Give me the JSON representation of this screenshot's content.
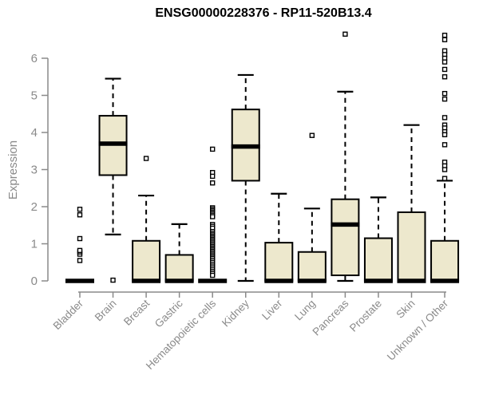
{
  "chart_data": {
    "type": "boxplot",
    "title": "ENSG00000228376 - RP11-520B13.4",
    "ylabel": "Expression",
    "xlabel": "",
    "ylim": [
      0,
      6
    ],
    "y_ticks": [
      0,
      1,
      2,
      3,
      4,
      5,
      6
    ],
    "grid": false,
    "legend": "none",
    "box_fill": "#EDE8CD",
    "box_stroke": "#000000",
    "axis_color": "#8A8A8A",
    "categories": [
      "Bladder",
      "Brain",
      "Breast",
      "Gastric",
      "Hematopoietic cells",
      "Kidney",
      "Liver",
      "Lung",
      "Pancreas",
      "Prostate",
      "Skin",
      "Unknown / Other"
    ],
    "series": [
      {
        "category": "Bladder",
        "whisker_low": 0,
        "q1": 0,
        "median": 0,
        "q3": 0,
        "whisker_high": 0,
        "outliers": [
          0.55,
          0.72,
          0.78,
          0.82,
          1.14,
          1.78,
          1.93
        ]
      },
      {
        "category": "Brain",
        "whisker_low": 1.25,
        "q1": 2.85,
        "median": 3.7,
        "q3": 4.45,
        "whisker_high": 5.45,
        "outliers": [
          0.02
        ]
      },
      {
        "category": "Breast",
        "whisker_low": 0,
        "q1": 0,
        "median": 0,
        "q3": 1.08,
        "whisker_high": 2.3,
        "outliers": [
          3.3
        ]
      },
      {
        "category": "Gastric",
        "whisker_low": 0,
        "q1": 0,
        "median": 0,
        "q3": 0.7,
        "whisker_high": 1.53,
        "outliers": []
      },
      {
        "category": "Hematopoietic cells",
        "whisker_low": 0,
        "q1": 0,
        "median": 0,
        "q3": 0,
        "whisker_high": 0,
        "outliers": [
          3.55,
          2.92,
          2.82,
          2.64,
          1.97,
          1.93,
          1.89,
          1.85,
          1.81,
          1.77,
          1.73,
          1.52,
          1.47,
          1.42,
          1.33,
          1.28,
          1.24,
          1.2,
          1.16,
          1.12,
          1.08,
          1.04,
          1.0,
          0.96,
          0.92,
          0.88,
          0.84,
          0.8,
          0.76,
          0.72,
          0.68,
          0.64,
          0.6,
          0.55,
          0.5,
          0.45,
          0.4,
          0.35,
          0.3,
          0.25,
          0.2,
          0.15
        ]
      },
      {
        "category": "Kidney",
        "whisker_low": 0,
        "q1": 2.7,
        "median": 3.62,
        "q3": 4.62,
        "whisker_high": 5.55,
        "outliers": []
      },
      {
        "category": "Liver",
        "whisker_low": 0,
        "q1": 0,
        "median": 0,
        "q3": 1.03,
        "whisker_high": 2.35,
        "outliers": []
      },
      {
        "category": "Lung",
        "whisker_low": 0,
        "q1": 0,
        "median": 0,
        "q3": 0.78,
        "whisker_high": 1.95,
        "outliers": [
          3.92
        ]
      },
      {
        "category": "Pancreas",
        "whisker_low": 0,
        "q1": 0.15,
        "median": 1.52,
        "q3": 2.2,
        "whisker_high": 5.1,
        "outliers": [
          6.65
        ]
      },
      {
        "category": "Prostate",
        "whisker_low": 0,
        "q1": 0,
        "median": 0,
        "q3": 1.15,
        "whisker_high": 2.25,
        "outliers": []
      },
      {
        "category": "Skin",
        "whisker_low": 0,
        "q1": 0,
        "median": 0,
        "q3": 1.85,
        "whisker_high": 4.2,
        "outliers": []
      },
      {
        "category": "Unknown / Other",
        "whisker_low": 0,
        "q1": 0,
        "median": 0,
        "q3": 1.08,
        "whisker_high": 2.7,
        "outliers": [
          6.62,
          6.5,
          6.2,
          6.1,
          6.0,
          5.9,
          5.7,
          5.5,
          5.05,
          4.9,
          4.4,
          4.2,
          4.12,
          4.02,
          3.94,
          3.67,
          3.2,
          3.1,
          3.0,
          2.76
        ]
      }
    ]
  }
}
